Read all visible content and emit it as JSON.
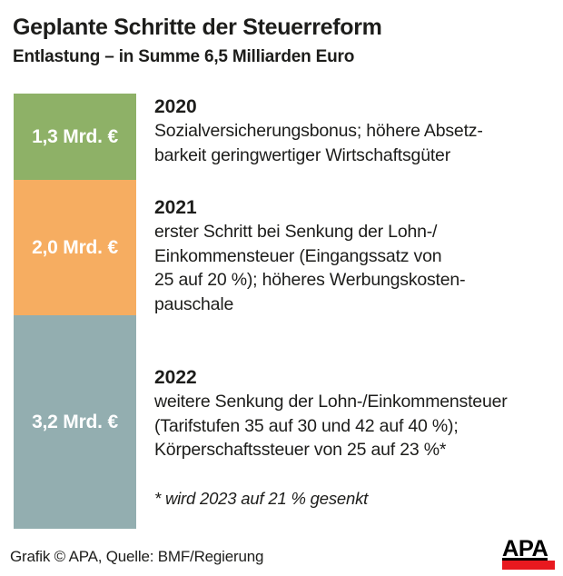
{
  "header": {
    "title": "Geplante Schritte der Steuerreform",
    "subtitle": "Entlastung – in Summe 6,5 Milliarden Euro"
  },
  "chart_data": {
    "type": "bar",
    "variant": "single-stacked-column",
    "title": "Geplante Schritte der Steuerreform",
    "subtitle": "Entlastung – in Summe 6,5 Milliarden Euro",
    "unit": "Mrd. €",
    "total": 6.5,
    "categories": [
      "2020",
      "2021",
      "2022"
    ],
    "values": [
      1.3,
      2.0,
      3.2
    ],
    "value_labels": [
      "1,3 Mrd. €",
      "2,0 Mrd. €",
      "3,2 Mrd. €"
    ],
    "segment_colors": [
      "#8eb167",
      "#f6ad61",
      "#93aeb0"
    ],
    "orientation": "vertical",
    "axes": "none",
    "legend_position": "none",
    "annotations": [
      "Sozialversicherungsbonus; höhere Absetzbarkeit geringwertiger Wirtschaftsgüter",
      "erster Schritt bei Senkung der Lohn-/Einkommensteuer (Eingangssatz von 25 auf 20 %); höheres Werbungskostenpauschale",
      "weitere Senkung der Lohn-/Einkommensteuer (Tarifstufen 35 auf 30 und 42 auf 40 %); Körperschaftssteuer von 25 auf 23 %*"
    ]
  },
  "sections": [
    {
      "year": "2020",
      "amount": "1,3 Mrd. €",
      "color": "#8eb167",
      "lines": [
        "Sozialversicherungsbonus; höhere Absetz-",
        "barkeit geringwertiger Wirtschaftsgüter"
      ]
    },
    {
      "year": "2021",
      "amount": "2,0 Mrd. €",
      "color": "#f6ad61",
      "lines": [
        "erster Schritt bei Senkung der Lohn-/",
        "Einkommensteuer (Eingangssatz von",
        "25 auf 20 %); höheres Werbungskosten-",
        "pauschale"
      ]
    },
    {
      "year": "2022",
      "amount": "3,2 Mrd. €",
      "color": "#93aeb0",
      "lines": [
        "weitere Senkung der Lohn-/Einkommensteuer",
        "(Tarifstufen 35 auf 30 und 42 auf 40 %);",
        "Körperschaftssteuer von 25 auf 23 %*"
      ]
    }
  ],
  "footnote": "* wird 2023 auf 21 % gesenkt",
  "footer": {
    "credit": "Grafik © APA, Quelle: BMF/Regierung",
    "logo_text": "APA"
  }
}
